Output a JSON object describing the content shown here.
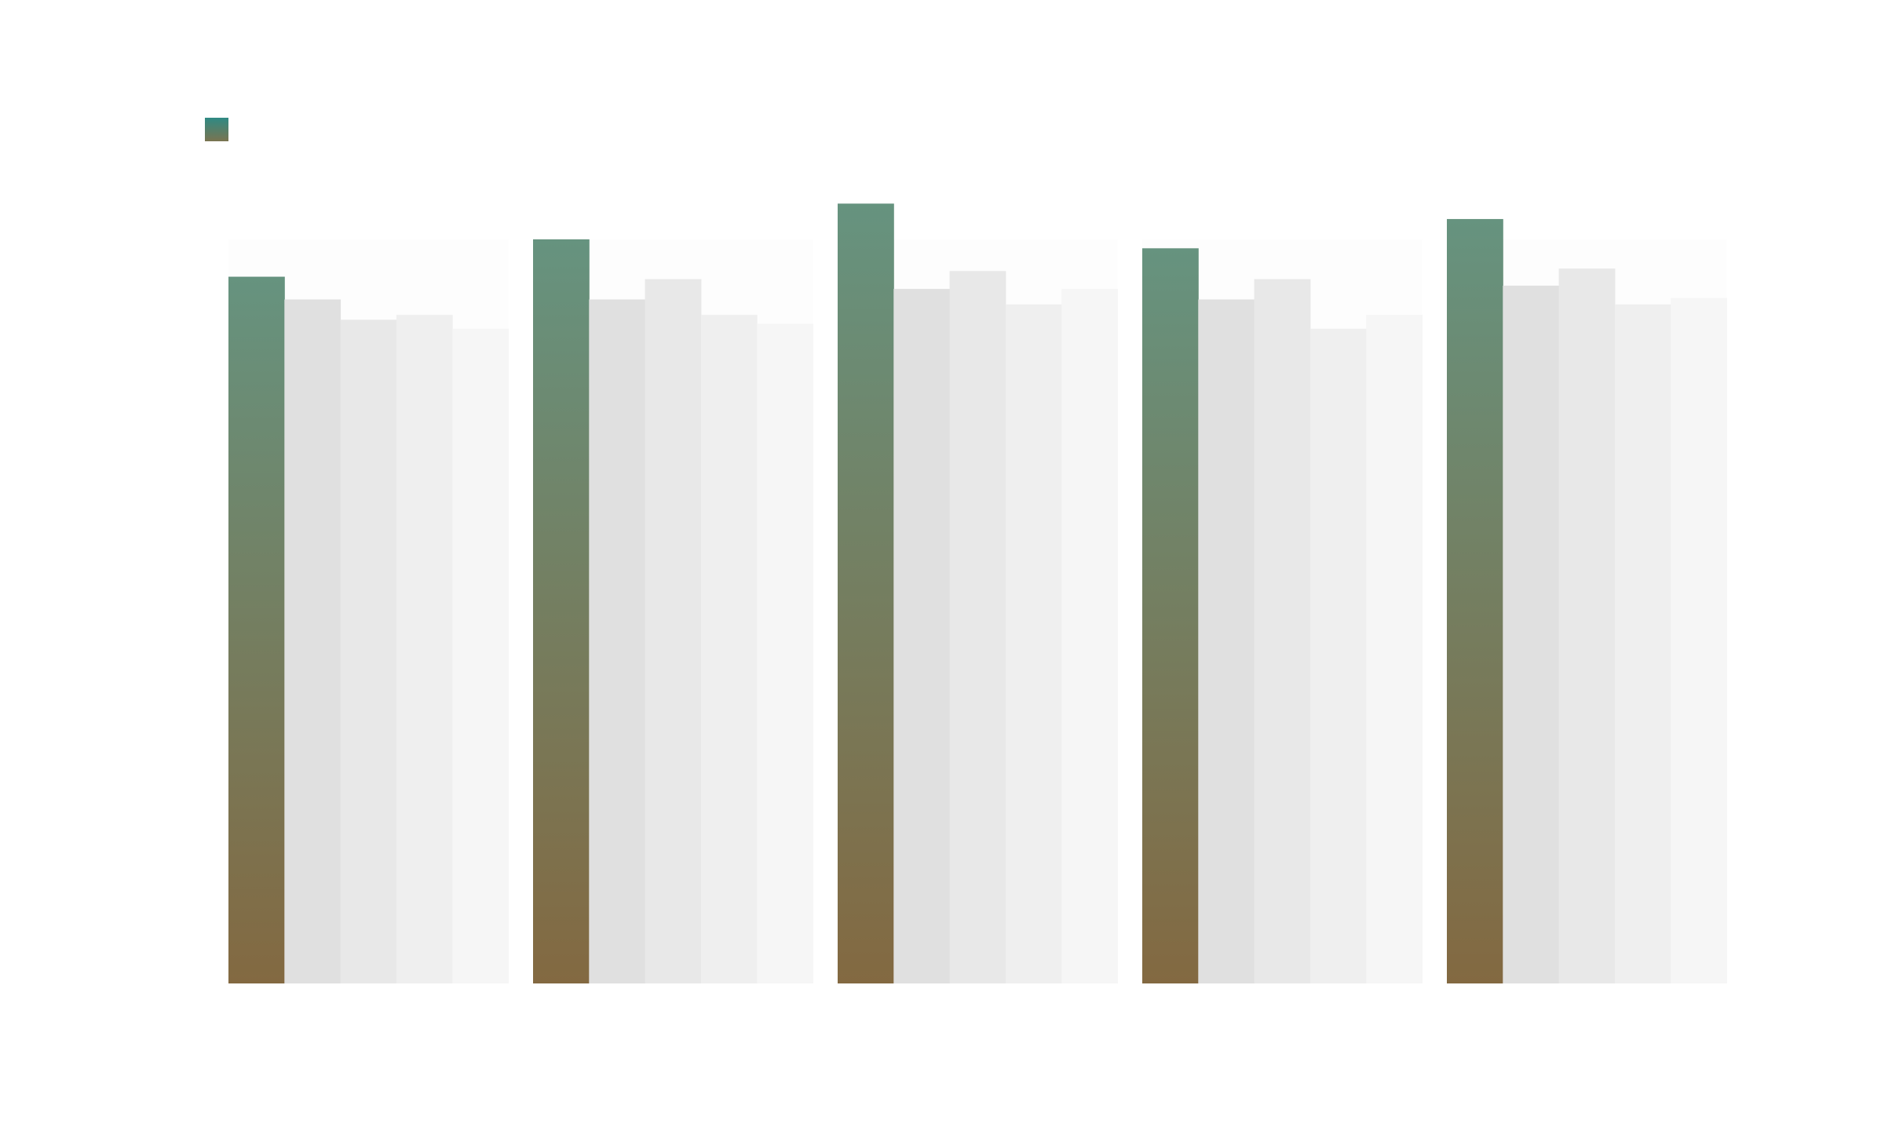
{
  "chart_data": {
    "type": "bar",
    "categories": [
      "",
      "",
      "",
      "",
      ""
    ],
    "series": [
      {
        "values": [
          87,
          91.6,
          96,
          90.5,
          94.1
        ]
      },
      {
        "values": [
          84.2,
          84.2,
          85.5,
          84.2,
          85.9
        ]
      },
      {
        "values": [
          81.7,
          86.7,
          87.7,
          86.7,
          88
        ]
      },
      {
        "values": [
          82.3,
          82.3,
          83.6,
          80.6,
          83.6
        ]
      },
      {
        "values": [
          80.6,
          81.2,
          85.5,
          82.3,
          84.4
        ]
      }
    ],
    "ylim": [
      0,
      100
    ],
    "grid": false,
    "legend": "top-left",
    "colors": {
      "highlight_top": "#66937f",
      "highlight_bottom": "#836941",
      "muted": [
        "#e0e0e0",
        "#e8e8e8",
        "#efefef",
        "#f6f6f6"
      ],
      "group_background": "#fdfdfd",
      "legend_swatch_top": "#2f8a84",
      "legend_swatch_bottom": "#7a7450"
    }
  }
}
